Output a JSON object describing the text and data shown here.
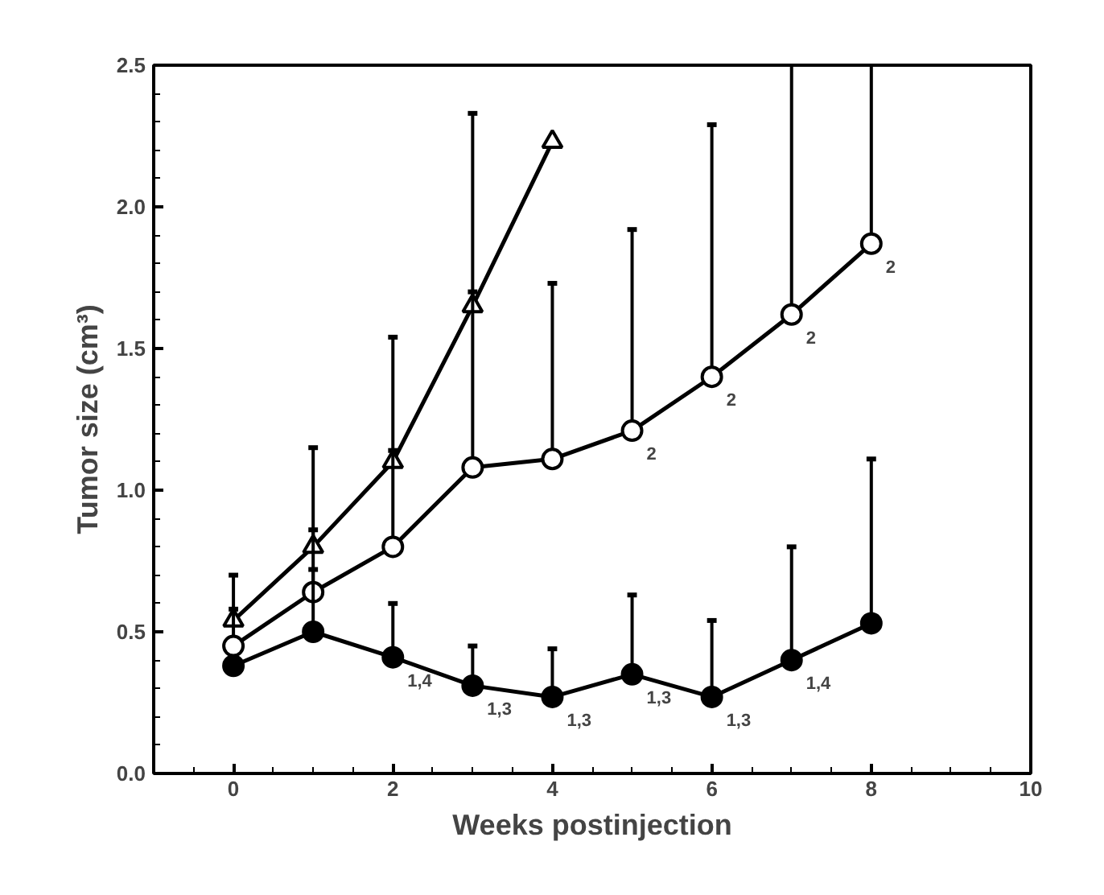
{
  "chart_data": {
    "type": "line",
    "xlabel": "Weeks postinjection",
    "ylabel": "Tumor size (cm³)",
    "xlim": [
      -1,
      10
    ],
    "ylim": [
      0,
      2.5
    ],
    "xticks": [
      0,
      2,
      4,
      6,
      8,
      10
    ],
    "yticks": [
      {
        "value": 0,
        "label": "0.0"
      },
      {
        "value": 0.5,
        "label": "0.5"
      },
      {
        "value": 1,
        "label": "1.0"
      },
      {
        "value": 1.5,
        "label": "1.5"
      },
      {
        "value": 2,
        "label": "2.0"
      },
      {
        "value": 2.5,
        "label": "2.5"
      }
    ],
    "grid": false,
    "line_style": "solid",
    "series": [
      {
        "color": "#000000",
        "marker": "triangle",
        "colors": [
          "#ffffff",
          "#ffffff",
          "#ffffff",
          "#ffffff",
          "#ffffff"
        ],
        "x": [
          0,
          1,
          2,
          3,
          4
        ],
        "values": [
          0.54,
          0.8,
          1.1,
          1.65,
          2.23
        ],
        "errors": [
          [
            0.54,
            0.58
          ],
          [
            0.8,
            0.86
          ],
          [
            1.1,
            1.14
          ],
          [
            1.65,
            1.7
          ],
          null
        ]
      },
      {
        "color": "#000000",
        "marker": "circle",
        "colors": [
          "#ffffff",
          "#ffffff",
          "#ffffff",
          "#ffffff",
          "#ffffff",
          "#ffffff",
          "#ffffff",
          "#ffffff",
          "#ffffff"
        ],
        "x": [
          0,
          1,
          2,
          3,
          4,
          5,
          6,
          7,
          8
        ],
        "values": [
          0.45,
          0.64,
          0.8,
          1.08,
          1.11,
          1.21,
          1.4,
          1.62,
          1.87
        ],
        "errors": [
          [
            0.45,
            0.7
          ],
          [
            0.64,
            1.15
          ],
          [
            0.8,
            1.54
          ],
          [
            1.08,
            2.33
          ],
          [
            1.11,
            1.73
          ],
          [
            1.21,
            1.92
          ],
          [
            1.4,
            2.29
          ],
          [
            1.62,
            2.5
          ],
          [
            1.87,
            2.5
          ]
        ]
      },
      {
        "color": "#000000",
        "marker": "circle",
        "colors": [
          "#000000",
          "#000000",
          "#000000",
          "#000000",
          "#000000",
          "#000000",
          "#000000",
          "#000000",
          "#000000"
        ],
        "x": [
          0,
          1,
          2,
          3,
          4,
          5,
          6,
          7,
          8
        ],
        "values": [
          0.38,
          0.5,
          0.41,
          0.31,
          0.27,
          0.35,
          0.27,
          0.4,
          0.53
        ],
        "errors": [
          null,
          [
            0.5,
            0.72
          ],
          [
            0.41,
            0.6
          ],
          [
            0.31,
            0.45
          ],
          [
            0.27,
            0.44
          ],
          [
            0.35,
            0.63
          ],
          [
            0.27,
            0.54
          ],
          [
            0.4,
            0.8
          ],
          [
            0.53,
            1.11
          ]
        ]
      }
    ],
    "annotations": [
      {
        "text": "2",
        "x": 5,
        "y": 1.21
      },
      {
        "text": "2",
        "x": 6,
        "y": 1.4
      },
      {
        "text": "2",
        "x": 7,
        "y": 1.62
      },
      {
        "text": "2",
        "x": 8,
        "y": 1.87
      },
      {
        "text": "1,4",
        "x": 2,
        "y": 0.41
      },
      {
        "text": "1,3",
        "x": 3,
        "y": 0.31
      },
      {
        "text": "1,3",
        "x": 4,
        "y": 0.27
      },
      {
        "text": "1,3",
        "x": 5,
        "y": 0.35
      },
      {
        "text": "1,3",
        "x": 6,
        "y": 0.27
      },
      {
        "text": "1,4",
        "x": 7,
        "y": 0.4
      }
    ]
  }
}
